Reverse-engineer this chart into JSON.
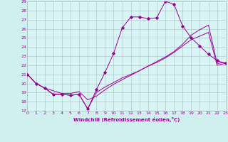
{
  "xlabel": "Windchill (Refroidissement éolien,°C)",
  "bg_color": "#d0f0f0",
  "plot_bg_color": "#d8f4f4",
  "grid_color": "#b0c8c8",
  "line_color": "#990099",
  "ylim": [
    17,
    29
  ],
  "xlim": [
    0,
    23
  ],
  "yticks": [
    17,
    18,
    19,
    20,
    21,
    22,
    23,
    24,
    25,
    26,
    27,
    28,
    29
  ],
  "xticks": [
    0,
    1,
    2,
    3,
    4,
    5,
    6,
    7,
    8,
    9,
    10,
    11,
    12,
    13,
    14,
    15,
    16,
    17,
    18,
    19,
    20,
    21,
    22,
    23
  ],
  "line1_x": [
    0,
    1,
    2,
    3,
    4,
    5,
    6,
    7,
    8,
    9,
    10,
    11,
    12,
    13,
    14,
    15,
    16,
    17,
    18,
    19,
    20,
    21,
    22,
    23
  ],
  "line1_y": [
    21.0,
    20.0,
    19.5,
    18.8,
    18.8,
    18.7,
    18.8,
    17.2,
    19.3,
    21.2,
    23.3,
    26.1,
    27.3,
    27.3,
    27.1,
    27.2,
    29.0,
    28.7,
    26.3,
    25.0,
    24.1,
    23.2,
    22.5,
    22.2
  ],
  "line2_x": [
    0,
    1,
    2,
    3,
    4,
    5,
    6,
    7,
    8,
    9,
    10,
    11,
    12,
    13,
    14,
    15,
    16,
    17,
    18,
    19,
    20,
    21,
    22,
    23
  ],
  "line2_y": [
    21.0,
    20.0,
    19.5,
    18.8,
    18.8,
    18.7,
    18.8,
    17.2,
    19.0,
    19.6,
    20.1,
    20.6,
    21.0,
    21.4,
    21.9,
    22.3,
    22.8,
    23.4,
    24.1,
    24.8,
    25.2,
    25.6,
    22.0,
    22.2
  ],
  "line3_x": [
    0,
    1,
    2,
    3,
    4,
    5,
    6,
    7,
    8,
    9,
    10,
    11,
    12,
    13,
    14,
    15,
    16,
    17,
    18,
    19,
    20,
    21,
    22,
    23
  ],
  "line3_y": [
    21.0,
    20.0,
    19.5,
    19.2,
    18.9,
    18.9,
    19.1,
    18.2,
    18.6,
    19.3,
    19.9,
    20.4,
    20.9,
    21.4,
    21.9,
    22.4,
    22.9,
    23.5,
    24.3,
    25.3,
    25.9,
    26.4,
    22.2,
    22.3
  ]
}
